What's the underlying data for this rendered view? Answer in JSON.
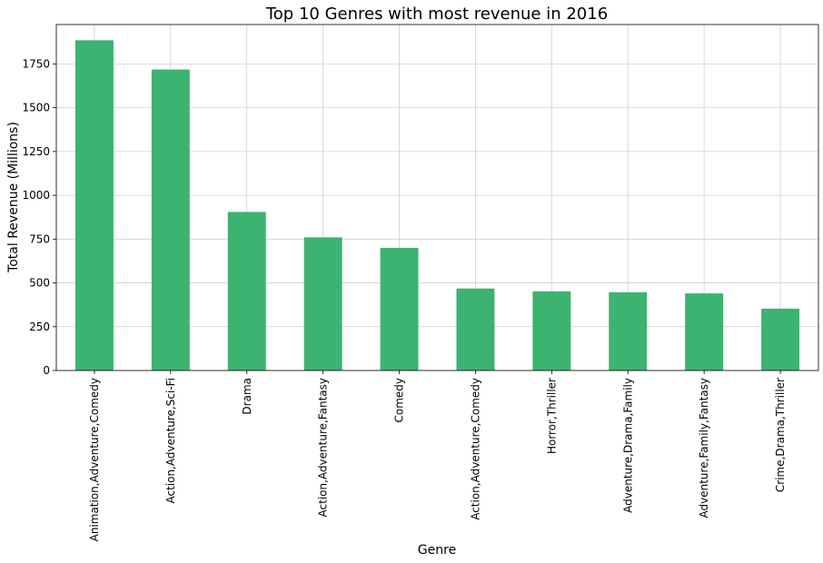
{
  "chart_data": {
    "type": "bar",
    "title": "Top 10 Genres with most revenue in 2016",
    "xlabel": "Genre",
    "ylabel": "Total Revenue (Millions)",
    "categories": [
      "Animation,Adventure,Comedy",
      "Action,Adventure,Sci-Fi",
      "Drama",
      "Action,Adventure,Fantasy",
      "Comedy",
      "Action,Adventure,Comedy",
      "Horror,Thriller",
      "Adventure,Drama,Family",
      "Adventure,Family,Fantasy",
      "Crime,Drama,Thriller"
    ],
    "values": [
      1885,
      1718,
      905,
      760,
      700,
      468,
      452,
      447,
      440,
      353
    ],
    "ylim": [
      0,
      1975
    ],
    "yticks": [
      0,
      250,
      500,
      750,
      1000,
      1250,
      1500,
      1750
    ],
    "bar_color": "#3cb371",
    "grid": true,
    "legend": "none"
  }
}
